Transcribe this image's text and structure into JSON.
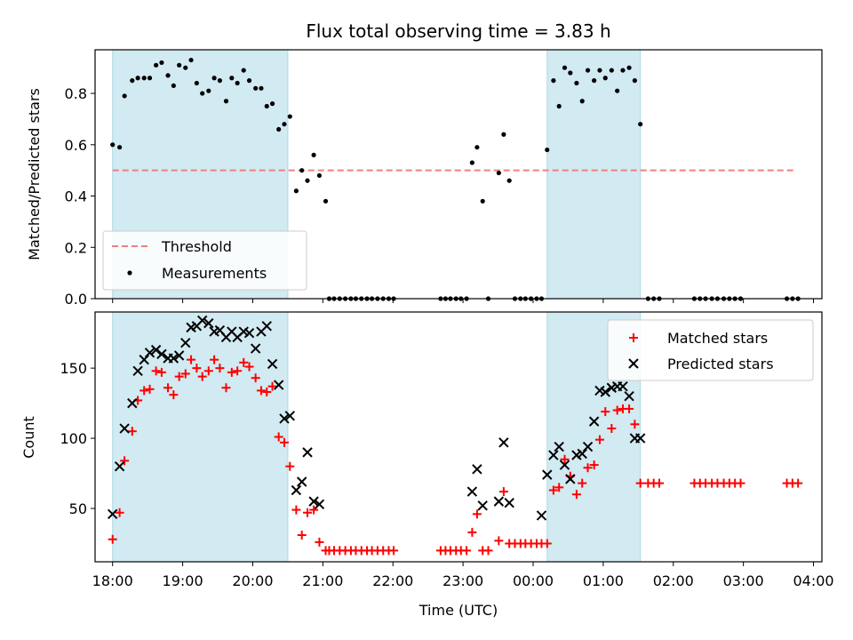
{
  "chart_data": {
    "type": "scatter",
    "title": "Flux total observing time = 3.83 h",
    "xlabel": "Time (UTC)",
    "x_ticks": [
      "18:00",
      "19:00",
      "20:00",
      "21:00",
      "22:00",
      "23:00",
      "00:00",
      "01:00",
      "02:00",
      "03:00",
      "04:00"
    ],
    "x_range_hours": [
      17.75,
      28.12
    ],
    "shaded_intervals_hours": [
      [
        18.0,
        20.5
      ],
      [
        24.2,
        25.53
      ]
    ],
    "colors": {
      "shade": "#add8e6",
      "threshold": "#f08080",
      "matched": "#ff0000",
      "predicted": "#000000",
      "measurement": "#000000"
    },
    "top_panel": {
      "ylabel": "Matched/Predicted stars",
      "ylim": [
        0,
        0.97
      ],
      "y_ticks": [
        "0.0",
        "0.2",
        "0.4",
        "0.6",
        "0.8"
      ],
      "y_tick_values": [
        0,
        0.2,
        0.4,
        0.6,
        0.8
      ],
      "threshold": {
        "name": "Threshold",
        "y": 0.5,
        "x_range": [
          18.0,
          27.75
        ]
      },
      "legend_placement": "lower-left",
      "series": [
        {
          "name": "Measurements",
          "x": [
            18.0,
            18.1,
            18.17,
            18.28,
            18.36,
            18.45,
            18.53,
            18.62,
            18.7,
            18.79,
            18.87,
            18.95,
            19.04,
            19.12,
            19.2,
            19.28,
            19.37,
            19.45,
            19.53,
            19.62,
            19.7,
            19.78,
            19.87,
            19.95,
            20.04,
            20.12,
            20.2,
            20.28,
            20.37,
            20.45,
            20.53,
            20.62,
            20.7,
            20.78,
            20.87,
            20.95,
            21.04,
            21.09,
            21.16,
            21.24,
            21.32,
            21.4,
            21.47,
            21.55,
            21.63,
            21.7,
            21.78,
            21.86,
            21.94,
            22.01,
            22.68,
            22.75,
            22.82,
            22.9,
            22.97,
            23.05,
            23.13,
            23.2,
            23.28,
            23.36,
            23.51,
            23.58,
            23.66,
            23.74,
            23.82,
            23.89,
            23.97,
            24.05,
            24.12,
            24.2,
            24.29,
            24.37,
            24.45,
            24.53,
            24.62,
            24.7,
            24.78,
            24.87,
            24.95,
            25.03,
            25.12,
            25.2,
            25.28,
            25.37,
            25.45,
            25.53,
            25.64,
            25.72,
            25.8,
            26.3,
            26.38,
            26.46,
            26.55,
            26.63,
            26.72,
            26.8,
            26.88,
            26.96,
            27.62,
            27.7,
            27.78
          ],
          "y": [
            0.6,
            0.59,
            0.79,
            0.85,
            0.86,
            0.86,
            0.86,
            0.91,
            0.92,
            0.87,
            0.83,
            0.91,
            0.9,
            0.93,
            0.84,
            0.8,
            0.81,
            0.86,
            0.85,
            0.77,
            0.86,
            0.84,
            0.89,
            0.85,
            0.82,
            0.82,
            0.75,
            0.76,
            0.66,
            0.68,
            0.71,
            0.42,
            0.5,
            0.46,
            0.56,
            0.48,
            0.38,
            0.0,
            0.0,
            0.0,
            0.0,
            0.0,
            0.0,
            0.0,
            0.0,
            0.0,
            0.0,
            0.0,
            0.0,
            0.0,
            0.0,
            0.0,
            0.0,
            0.0,
            0.0,
            0.0,
            0.53,
            0.59,
            0.38,
            0.0,
            0.49,
            0.64,
            0.46,
            0.0,
            0.0,
            0.0,
            0.0,
            0.0,
            0.0,
            0.58,
            0.85,
            0.75,
            0.9,
            0.88,
            0.84,
            0.77,
            0.89,
            0.85,
            0.89,
            0.86,
            0.89,
            0.81,
            0.89,
            0.9,
            0.85,
            0.68,
            0.0,
            0.0,
            0.0,
            0.0,
            0.0,
            0.0,
            0.0,
            0.0,
            0.0,
            0.0,
            0.0,
            0.0,
            0.0,
            0.0,
            0.0
          ]
        }
      ]
    },
    "bottom_panel": {
      "ylabel": "Count",
      "ylim": [
        12,
        190
      ],
      "y_ticks": [
        "50",
        "100",
        "150"
      ],
      "y_tick_values": [
        50,
        100,
        150
      ],
      "legend_placement": "upper-right",
      "series": [
        {
          "name": "Matched stars",
          "marker": "plus",
          "x": [
            18.0,
            18.1,
            18.17,
            18.28,
            18.36,
            18.45,
            18.53,
            18.62,
            18.7,
            18.79,
            18.87,
            18.95,
            19.04,
            19.12,
            19.2,
            19.28,
            19.37,
            19.45,
            19.53,
            19.62,
            19.7,
            19.78,
            19.87,
            19.95,
            20.04,
            20.12,
            20.2,
            20.28,
            20.37,
            20.45,
            20.53,
            20.62,
            20.7,
            20.78,
            20.87,
            20.95,
            21.04,
            21.09,
            21.16,
            21.24,
            21.32,
            21.4,
            21.47,
            21.55,
            21.63,
            21.7,
            21.78,
            21.86,
            21.94,
            22.01,
            22.68,
            22.75,
            22.82,
            22.9,
            22.97,
            23.05,
            23.13,
            23.2,
            23.28,
            23.36,
            23.51,
            23.58,
            23.66,
            23.74,
            23.82,
            23.89,
            23.97,
            24.05,
            24.12,
            24.2,
            24.29,
            24.37,
            24.45,
            24.53,
            24.62,
            24.7,
            24.78,
            24.87,
            24.95,
            25.03,
            25.12,
            25.2,
            25.28,
            25.37,
            25.45,
            25.53,
            25.64,
            25.72,
            25.8,
            26.3,
            26.38,
            26.46,
            26.55,
            26.63,
            26.72,
            26.8,
            26.88,
            26.96,
            27.62,
            27.7,
            27.78
          ],
          "y": [
            28,
            47,
            84,
            105,
            127,
            134,
            135,
            148,
            147,
            136,
            131,
            144,
            146,
            156,
            150,
            144,
            148,
            156,
            150,
            136,
            147,
            148,
            154,
            151,
            143,
            134,
            133,
            137,
            101,
            97,
            80,
            49,
            31,
            47,
            49,
            26,
            20,
            20,
            20,
            20,
            20,
            20,
            20,
            20,
            20,
            20,
            20,
            20,
            20,
            20,
            20,
            20,
            20,
            20,
            20,
            20,
            33,
            46,
            20,
            20,
            27,
            62,
            25,
            25,
            25,
            25,
            25,
            25,
            25,
            25,
            63,
            65,
            85,
            73,
            60,
            68,
            79,
            81,
            99,
            119,
            107,
            120,
            121,
            121,
            110,
            68,
            68,
            68,
            68,
            68,
            68,
            68,
            68,
            68,
            68,
            68,
            68,
            68,
            68,
            68,
            68
          ]
        },
        {
          "name": "Predicted stars",
          "marker": "x",
          "x": [
            18.0,
            18.1,
            18.17,
            18.28,
            18.36,
            18.45,
            18.53,
            18.62,
            18.7,
            18.79,
            18.87,
            18.95,
            19.04,
            19.12,
            19.2,
            19.28,
            19.37,
            19.45,
            19.53,
            19.62,
            19.7,
            19.78,
            19.87,
            19.95,
            20.04,
            20.12,
            20.2,
            20.28,
            20.37,
            20.45,
            20.53,
            20.62,
            20.7,
            20.78,
            20.87,
            20.95,
            23.13,
            23.2,
            23.28,
            23.51,
            23.58,
            23.66,
            24.12,
            24.2,
            24.29,
            24.37,
            24.45,
            24.53,
            24.62,
            24.7,
            24.78,
            24.87,
            24.95,
            25.03,
            25.12,
            25.2,
            25.28,
            25.37,
            25.45,
            25.53
          ],
          "y": [
            46,
            80,
            107,
            125,
            148,
            156,
            161,
            163,
            160,
            157,
            157,
            159,
            168,
            179,
            180,
            184,
            182,
            176,
            177,
            172,
            176,
            172,
            176,
            175,
            164,
            176,
            180,
            153,
            138,
            114,
            116,
            63,
            69,
            90,
            55,
            53,
            62,
            78,
            52,
            55,
            97,
            54,
            45,
            74,
            88,
            94,
            81,
            71,
            88,
            89,
            94,
            112,
            134,
            133,
            136,
            137,
            137,
            130,
            100,
            100
          ]
        }
      ]
    }
  }
}
